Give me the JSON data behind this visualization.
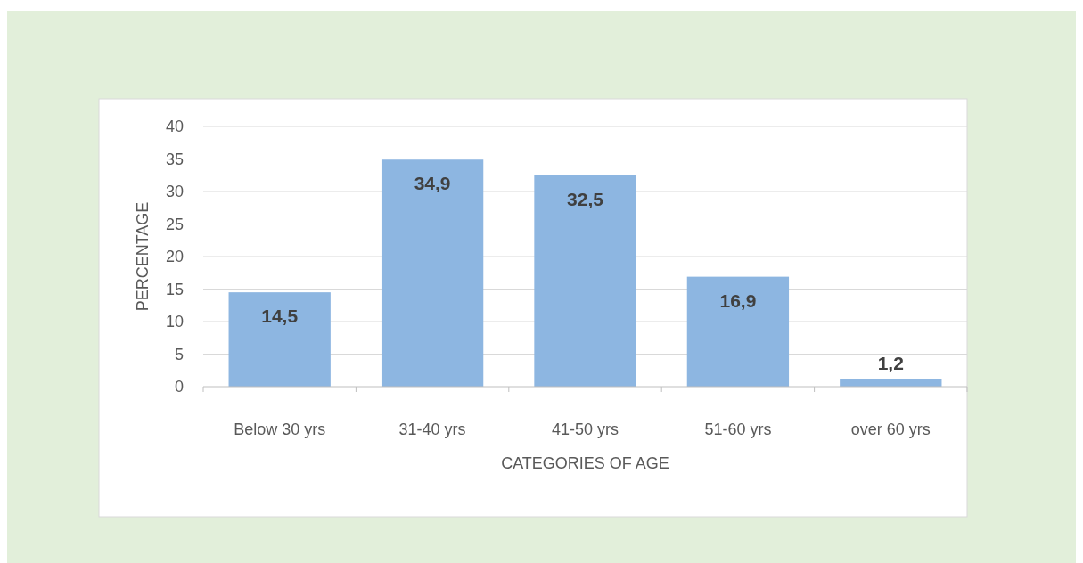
{
  "chart_data": {
    "type": "bar",
    "xlabel": "CATEGORIES OF AGE",
    "ylabel": "PERCENTAGE",
    "categories": [
      "Below 30 yrs",
      "31-40 yrs",
      "41-50 yrs",
      "51-60 yrs",
      "over 60 yrs"
    ],
    "values": [
      14.5,
      34.9,
      32.5,
      16.9,
      1.2
    ],
    "value_labels": [
      "14,5",
      "34,9",
      "32,5",
      "16,9",
      "1,2"
    ],
    "color": "#8db6e1",
    "ylim": [
      0,
      40
    ],
    "yticks": [
      0,
      5,
      10,
      15,
      20,
      25,
      30,
      35,
      40
    ],
    "grid": "y"
  }
}
